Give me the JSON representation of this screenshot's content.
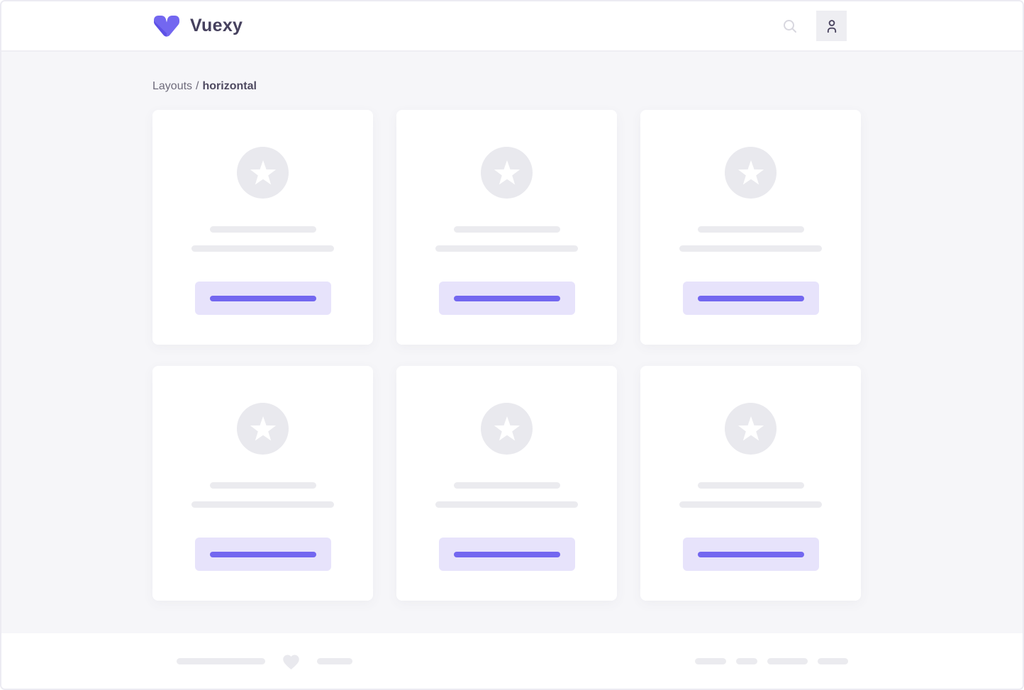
{
  "brand": {
    "name": "Vuexy",
    "logo_icon": "vuexy-v-logo-icon"
  },
  "header": {
    "search_icon": "search-icon",
    "avatar_icon": "person-icon"
  },
  "breadcrumb": {
    "section": "Layouts",
    "separator": "/",
    "current": "horizontal"
  },
  "cards": [
    {
      "image": "star-placeholder",
      "lines": 2,
      "button": "button-placeholder"
    },
    {
      "image": "star-placeholder",
      "lines": 2,
      "button": "button-placeholder"
    },
    {
      "image": "star-placeholder",
      "lines": 2,
      "button": "button-placeholder"
    },
    {
      "image": "star-placeholder",
      "lines": 2,
      "button": "button-placeholder"
    },
    {
      "image": "star-placeholder",
      "lines": 2,
      "button": "button-placeholder"
    },
    {
      "image": "star-placeholder",
      "lines": 2,
      "button": "button-placeholder"
    }
  ],
  "footer": {
    "left_lines": [
      125,
      50
    ],
    "heart_icon": "heart-icon",
    "right_pills": [
      44,
      30,
      57,
      43
    ]
  },
  "colors": {
    "primary": "#7367F0",
    "logo_fold": "#5A4DE4",
    "button_bg": "#E7E3FB",
    "placeholder_gray": "#EBEBEF",
    "content_bg": "#F6F6F9",
    "heading_text": "#46415E",
    "breadcrumb_text": "#6E6B7B"
  }
}
